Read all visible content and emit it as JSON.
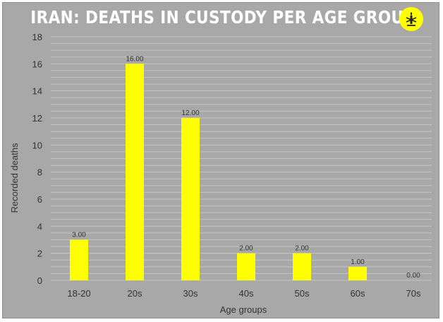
{
  "header": {
    "title": "IRAN: DEATHS IN CUSTODY PER AGE GROUP",
    "logo_icon": "amnesty-candle-logo-icon"
  },
  "colors": {
    "background": "#a8a8a8",
    "bar": "#ffff00",
    "gridline": "#c4c4c4",
    "text": "#333333",
    "title": "#ffffff"
  },
  "chart_data": {
    "type": "bar",
    "title": "IRAN: DEATHS IN CUSTODY PER AGE GROUP",
    "xlabel": "Age groups",
    "ylabel": "Recorded deaths",
    "categories": [
      "18-20",
      "20s",
      "30s",
      "40s",
      "50s",
      "60s",
      "70s"
    ],
    "values": [
      3,
      16,
      12,
      2,
      2,
      1,
      0
    ],
    "data_labels": [
      "3.00",
      "16.00",
      "12.00",
      "2.00",
      "2.00",
      "1.00",
      "0.00"
    ],
    "ylim": [
      0,
      18
    ],
    "yticks": [
      0,
      2,
      4,
      6,
      8,
      10,
      12,
      14,
      16,
      18
    ],
    "grid": true,
    "legend": "none"
  }
}
